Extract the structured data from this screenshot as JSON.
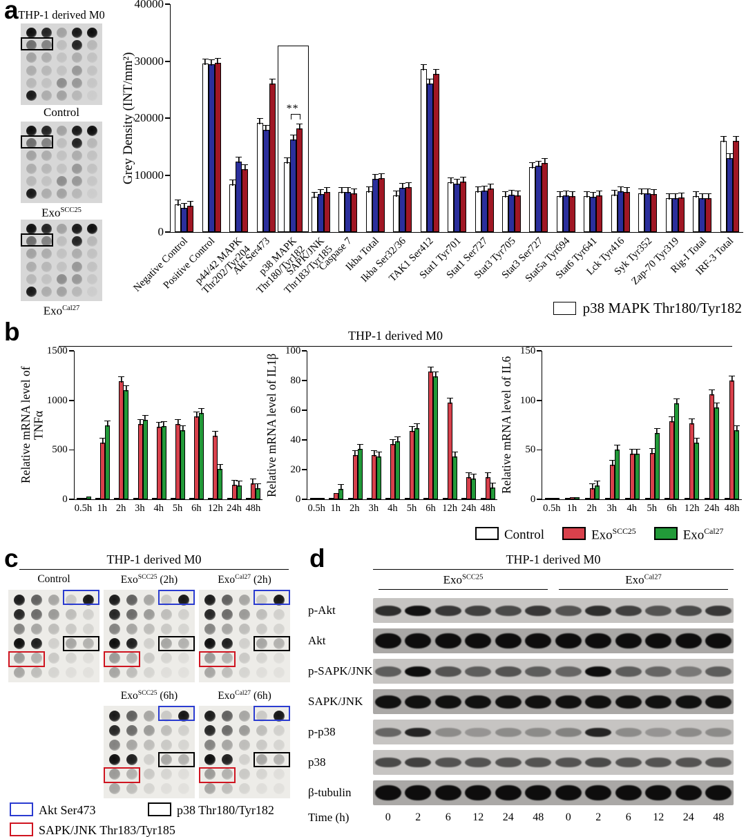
{
  "panel_a": {
    "letter": "a",
    "blots_title": "THP-1 derived M0",
    "blot_captions": [
      {
        "pre": "Control",
        "sup": "",
        "post": ""
      },
      {
        "pre": "Exo",
        "sup": "SCC25",
        "post": ""
      },
      {
        "pre": "Exo",
        "sup": "Cal27",
        "post": ""
      }
    ],
    "dot_rows": [
      [
        0.95,
        0.85,
        0.25,
        0.9,
        0.95
      ],
      [
        0.5,
        0.4,
        0.12,
        0.85,
        0.15
      ],
      [
        0.25,
        0.2,
        0.1,
        0.2,
        0.1
      ],
      [
        0.2,
        0.15,
        0.1,
        0.3,
        0.1
      ],
      [
        0.15,
        0.1,
        0.35,
        0.3,
        0.08
      ],
      [
        0.9,
        0.2,
        0.25,
        0.15,
        0.05
      ]
    ],
    "blot_box": {
      "row": 1,
      "c0": 0,
      "c1": 1,
      "color": "#000000"
    },
    "legend_label": "p38 MAPK Thr180/Tyr182"
  },
  "chart_data": [
    {
      "id": "grey-density",
      "type": "bar",
      "ylabel": "Grey Density (INT/mm²)",
      "ylim": [
        0,
        40000
      ],
      "yticks": [
        0,
        10000,
        20000,
        30000,
        40000
      ],
      "categories": [
        "Negative Control",
        "Positive Control",
        "p44/42 MAPK\nThr202/Tyr204",
        "Akt Ser473",
        "p38 MAPK\nThr180/Tyr182",
        "SAPK/JNK\nThr183/Tyr185",
        "Caspase 7",
        "Ikba Total",
        "Ikba Ser32/36",
        "TAK1 Ser412",
        "Stat1 Tyr701",
        "Stat1 Ser727",
        "Stat3 Tyr705",
        "Stat3 Ser727",
        "Stat5a Tyr694",
        "Stat6 Tyr641",
        "Lck Tyr416",
        "Syk Tyr352",
        "Zap-70 Tyr319",
        "Rig-I Total",
        "IRF-3 Total"
      ],
      "series": [
        {
          "name": "white",
          "color": "#ffffff",
          "values": [
            4900,
            29600,
            8400,
            19200,
            12300,
            6200,
            7000,
            7200,
            6400,
            28600,
            8700,
            7100,
            6300,
            11400,
            6300,
            6300,
            6500,
            6800,
            6000,
            6300,
            16000
          ]
        },
        {
          "name": "blue",
          "color": "#2b2f9c",
          "values": [
            4200,
            29400,
            12400,
            17900,
            16200,
            6700,
            7000,
            9300,
            7700,
            26100,
            8500,
            7300,
            6500,
            11600,
            6400,
            6200,
            7200,
            6800,
            5900,
            5900,
            13000
          ]
        },
        {
          "name": "red",
          "color": "#a01724",
          "values": [
            4600,
            29700,
            11000,
            26100,
            18200,
            7000,
            6800,
            9500,
            7900,
            27800,
            8900,
            7600,
            6400,
            12100,
            6300,
            6400,
            7000,
            6700,
            6100,
            6000,
            16000
          ]
        }
      ],
      "highlight": {
        "index": 4,
        "box": 32500,
        "bracket": 19800,
        "label": "**"
      }
    },
    {
      "id": "tnfa",
      "type": "bar",
      "ylabel": "Relative mRNA level of TNFα",
      "ylim": [
        0,
        1500
      ],
      "yticks": [
        0,
        500,
        1000,
        1500
      ],
      "categories": [
        "0.5h",
        "1h",
        "2h",
        "3h",
        "4h",
        "5h",
        "6h",
        "12h",
        "24h",
        "48h"
      ],
      "series": [
        {
          "name": "Control",
          "color": "#ffffff",
          "values": [
            5,
            6,
            8,
            8,
            8,
            8,
            8,
            8,
            8,
            8
          ]
        },
        {
          "name": "ExoSCC25",
          "color": "#d8414c",
          "values": [
            12,
            570,
            1190,
            760,
            730,
            760,
            840,
            640,
            150,
            160
          ]
        },
        {
          "name": "ExoCal27",
          "color": "#229a39",
          "values": [
            30,
            750,
            1100,
            800,
            740,
            700,
            870,
            310,
            140,
            110
          ]
        }
      ]
    },
    {
      "id": "il1b",
      "type": "bar",
      "ylabel": "Relative mRNA level of IL1β",
      "ylim": [
        0,
        100
      ],
      "yticks": [
        0,
        20,
        40,
        60,
        80,
        100
      ],
      "categories": [
        "0.5h",
        "1h",
        "2h",
        "3h",
        "4h",
        "5h",
        "6h",
        "12h",
        "24h",
        "48h"
      ],
      "series": [
        {
          "name": "Control",
          "color": "#ffffff",
          "values": [
            1,
            1,
            1,
            1,
            1,
            1,
            1,
            1,
            1,
            1
          ]
        },
        {
          "name": "ExoSCC25",
          "color": "#d8414c",
          "values": [
            1,
            4,
            30,
            30,
            37,
            46,
            86,
            65,
            15,
            15
          ]
        },
        {
          "name": "ExoCal27",
          "color": "#229a39",
          "values": [
            1,
            7,
            34,
            29,
            39,
            48,
            83,
            29,
            14,
            8
          ]
        }
      ]
    },
    {
      "id": "il6",
      "type": "bar",
      "ylabel": "Relative mRNA level of IL6",
      "ylim": [
        0,
        150
      ],
      "yticks": [
        0,
        50,
        100,
        150
      ],
      "categories": [
        "0.5h",
        "1h",
        "2h",
        "3h",
        "4h",
        "5h",
        "6h",
        "12h",
        "24h",
        "48h"
      ],
      "series": [
        {
          "name": "Control",
          "color": "#ffffff",
          "values": [
            1,
            1,
            1,
            1,
            1,
            1,
            1,
            1,
            1,
            1
          ]
        },
        {
          "name": "ExoSCC25",
          "color": "#d8414c",
          "values": [
            1,
            2,
            11,
            35,
            46,
            47,
            79,
            77,
            106,
            120
          ]
        },
        {
          "name": "ExoCal27",
          "color": "#229a39",
          "values": [
            1,
            2,
            14,
            50,
            46,
            67,
            97,
            57,
            93,
            70
          ]
        }
      ]
    }
  ],
  "panel_b": {
    "letter": "b",
    "title": "THP-1 derived M0",
    "legend": [
      {
        "pre": "Control",
        "sup": "",
        "post": "",
        "color": "#ffffff"
      },
      {
        "pre": "Exo",
        "sup": "SCC25",
        "post": "",
        "color": "#d8414c"
      },
      {
        "pre": "Exo",
        "sup": "Cal27",
        "post": "",
        "color": "#229a39"
      }
    ]
  },
  "panel_c": {
    "letter": "c",
    "title": "THP-1 derived M0",
    "row1_labels": [
      {
        "pre": "Control",
        "sup": "",
        "post": ""
      },
      {
        "pre": "Exo",
        "sup": "SCC25",
        "post": " (2h)"
      },
      {
        "pre": "Exo",
        "sup": "Cal27",
        "post": " (2h)"
      }
    ],
    "row2_labels": [
      {
        "pre": "Exo",
        "sup": "SCC25",
        "post": " (6h)"
      },
      {
        "pre": "Exo",
        "sup": "Cal27",
        "post": " (6h)"
      }
    ],
    "dot_rows": [
      [
        0.9,
        0.6,
        0.3,
        0.15,
        0.92
      ],
      [
        0.85,
        0.55,
        0.35,
        0.2,
        0.12
      ],
      [
        0.45,
        0.3,
        0.2,
        0.15,
        0.1
      ],
      [
        0.95,
        0.88,
        0.12,
        0.3,
        0.25
      ],
      [
        0.35,
        0.25,
        0.15,
        0.1,
        0.06
      ],
      [
        0.3,
        0.2,
        0.1,
        0.06,
        0.05
      ]
    ],
    "blot_boxes": [
      {
        "row": 0,
        "c0": 3,
        "c1": 4,
        "color": "#2a3bd0"
      },
      {
        "row": 3,
        "c0": 3,
        "c1": 4,
        "color": "#000000"
      },
      {
        "row": 4,
        "c0": 0,
        "c1": 1,
        "color": "#cf1420"
      }
    ],
    "legend": [
      {
        "label": "Akt Ser473",
        "color": "#2a3bd0"
      },
      {
        "label": "p38 Thr180/Tyr182",
        "color": "#000000"
      },
      {
        "label": "SAPK/JNK Thr183/Tyr185",
        "color": "#cf1420"
      }
    ]
  },
  "panel_d": {
    "letter": "d",
    "title": "THP-1 derived M0",
    "groups": [
      {
        "pre": "Exo",
        "sup": "SCC25",
        "post": ""
      },
      {
        "pre": "Exo",
        "sup": "Cal27",
        "post": ""
      }
    ],
    "rows": [
      {
        "label": "p-Akt",
        "band_height": 15,
        "bands": [
          0.8,
          0.95,
          0.75,
          0.7,
          0.65,
          0.75,
          0.6,
          0.8,
          0.7,
          0.6,
          0.65,
          0.75
        ]
      },
      {
        "label": "Akt",
        "band_height": 22,
        "bands": [
          0.97,
          0.97,
          0.97,
          0.97,
          0.97,
          0.97,
          0.97,
          0.97,
          0.97,
          0.97,
          0.97,
          0.97
        ]
      },
      {
        "label": "p-SAPK/JNK",
        "band_height": 15,
        "bands": [
          0.55,
          0.97,
          0.6,
          0.55,
          0.6,
          0.55,
          0.5,
          0.97,
          0.55,
          0.5,
          0.4,
          0.55
        ]
      },
      {
        "label": "SAPK/JNK",
        "band_height": 19,
        "bands": [
          0.95,
          0.95,
          0.95,
          0.95,
          0.95,
          0.95,
          0.95,
          0.95,
          0.95,
          0.95,
          0.95,
          0.95
        ]
      },
      {
        "label": "p-p38",
        "band_height": 13,
        "bands": [
          0.5,
          0.85,
          0.3,
          0.25,
          0.3,
          0.3,
          0.35,
          0.85,
          0.3,
          0.25,
          0.3,
          0.3
        ]
      },
      {
        "label": "p38",
        "band_height": 14,
        "bands": [
          0.65,
          0.7,
          0.6,
          0.6,
          0.6,
          0.6,
          0.6,
          0.65,
          0.6,
          0.6,
          0.6,
          0.6
        ]
      },
      {
        "label": "β-tubulin",
        "band_height": 22,
        "bands": [
          0.97,
          0.97,
          0.97,
          0.97,
          0.97,
          0.97,
          0.97,
          0.97,
          0.97,
          0.97,
          0.97,
          0.97
        ]
      }
    ],
    "time_label": "Time (h)",
    "time_values": [
      "0",
      "2",
      "6",
      "12",
      "24",
      "48",
      "0",
      "2",
      "6",
      "12",
      "24",
      "48"
    ]
  }
}
